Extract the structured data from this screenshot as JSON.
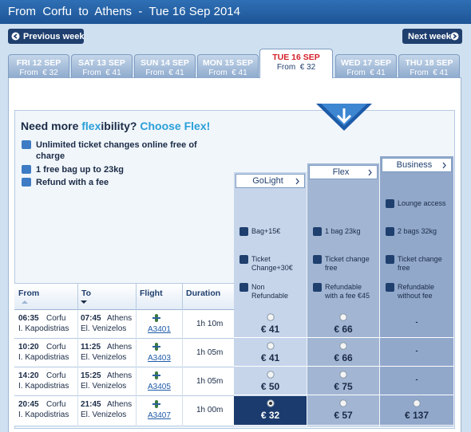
{
  "header": {
    "title": "From  Corfu  to  Athens  -  Tue 16 Sep 2014"
  },
  "nav": {
    "previous": "Previous week",
    "next": "Next week"
  },
  "tabs": [
    {
      "day": "FRI 12 SEP",
      "price": "From  € 32"
    },
    {
      "day": "SAT 13 SEP",
      "price": "From  € 41"
    },
    {
      "day": "SUN 14 SEP",
      "price": "From  € 41"
    },
    {
      "day": "MON 15 SEP",
      "price": "From  € 41"
    },
    {
      "day": "TUE 16 SEP",
      "price": "From  € 32"
    },
    {
      "day": "WED 17 SEP",
      "price": "From  € 41"
    },
    {
      "day": "THU 18 SEP",
      "price": "From  € 41"
    }
  ],
  "selected_tab": 4,
  "flex": {
    "title": [
      "Need more ",
      "flex",
      "ibility? ",
      "Choose Flex!"
    ],
    "benefits": [
      "Unlimited ticket changes online free of charge",
      "1 free bag up to 23kg",
      "Refund with a fee"
    ]
  },
  "fares": [
    {
      "name": "GoLight",
      "features": [
        "Bag+15€",
        "Ticket Change+30€",
        "Non Refundable"
      ]
    },
    {
      "name": "Flex",
      "features": [
        "1 bag 23kg",
        "Ticket change free",
        "Refundable with a fee €45"
      ]
    },
    {
      "name": "Business",
      "features": [
        "Lounge access",
        "2 bags 32kg",
        "Ticket change free",
        "Refundable without fee"
      ]
    }
  ],
  "table": {
    "headers": [
      "From",
      "To",
      "Flight",
      "Duration"
    ],
    "rows": [
      {
        "dep_time": "06:35",
        "dep_city": "Corfu",
        "dep_airport": "I. Kapodistrias",
        "arr_time": "07:45",
        "arr_city": "Athens",
        "arr_airport": "El. Venizelos",
        "flight": "A3401",
        "duration": "1h 10m",
        "prices": [
          "€ 41",
          "€ 66",
          "-"
        ]
      },
      {
        "dep_time": "10:20",
        "dep_city": "Corfu",
        "dep_airport": "I. Kapodistrias",
        "arr_time": "11:25",
        "arr_city": "Athens",
        "arr_airport": "El. Venizelos",
        "flight": "A3403",
        "duration": "1h 05m",
        "prices": [
          "€ 41",
          "€ 66",
          "-"
        ]
      },
      {
        "dep_time": "14:20",
        "dep_city": "Corfu",
        "dep_airport": "I. Kapodistrias",
        "arr_time": "15:25",
        "arr_city": "Athens",
        "arr_airport": "El. Venizelos",
        "flight": "A3405",
        "duration": "1h 05m",
        "prices": [
          "€ 50",
          "€ 75",
          "-"
        ]
      },
      {
        "dep_time": "20:45",
        "dep_city": "Corfu",
        "dep_airport": "I. Kapodistrias",
        "arr_time": "21:45",
        "arr_city": "Athens",
        "arr_airport": "El. Venizelos",
        "flight": "A3407",
        "duration": "1h 00m",
        "prices": [
          "€ 32",
          "€ 57",
          "€ 137"
        ]
      }
    ],
    "selected": [
      3,
      0
    ]
  }
}
